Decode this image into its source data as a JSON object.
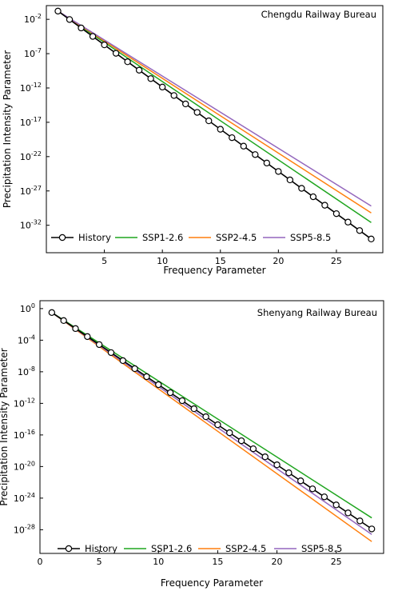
{
  "chart_data": [
    {
      "type": "line",
      "title": "Chengdu Railway Bureau",
      "xlabel": "Frequency Parameter",
      "ylabel": "Precipitation Intensity Parameter",
      "xlim": [
        0,
        29
      ],
      "xticks": [
        5,
        10,
        15,
        20,
        25
      ],
      "y_scale": "log",
      "ylim_log10": [
        -36,
        0
      ],
      "yticks": [
        {
          "label": "10",
          "exp": "-2",
          "value": -2
        },
        {
          "label": "10",
          "exp": "-7",
          "value": -7
        },
        {
          "label": "10",
          "exp": "-12",
          "value": -12
        },
        {
          "label": "10",
          "exp": "-17",
          "value": -17
        },
        {
          "label": "10",
          "exp": "-22",
          "value": -22
        },
        {
          "label": "10",
          "exp": "-27",
          "value": -27
        },
        {
          "label": "10",
          "exp": "-32",
          "value": -32
        }
      ],
      "legend_position": "bottom",
      "series": [
        {
          "name": "History",
          "color": "#000000",
          "marker": "circle",
          "x_start": 1,
          "x_end": 28,
          "log10_y_start": -0.8,
          "log10_y_end": -34.0
        },
        {
          "name": "SSP1-2.6",
          "color": "#1fa51f",
          "marker": "none",
          "x_start": 1,
          "x_end": 28,
          "log10_y_start": -0.8,
          "log10_y_end": -31.6
        },
        {
          "name": "SSP2-4.5",
          "color": "#ff7f0e",
          "marker": "none",
          "x_start": 1,
          "x_end": 28,
          "log10_y_start": -0.8,
          "log10_y_end": -30.2
        },
        {
          "name": "SSP5-8.5",
          "color": "#9467bd",
          "marker": "none",
          "x_start": 1,
          "x_end": 28,
          "log10_y_start": -0.8,
          "log10_y_end": -29.2
        }
      ]
    },
    {
      "type": "line",
      "title": "Shenyang Railway Bureau",
      "xlabel": "Frequency Parameter",
      "ylabel": "Precipitation Intensity Parameter",
      "xlim": [
        0,
        29
      ],
      "xticks": [
        0,
        5,
        10,
        15,
        20,
        25
      ],
      "y_scale": "log",
      "ylim_log10": [
        -31,
        1
      ],
      "yticks": [
        {
          "label": "10",
          "exp": "0",
          "value": 0
        },
        {
          "label": "10",
          "exp": "-4",
          "value": -4
        },
        {
          "label": "10",
          "exp": "-8",
          "value": -8
        },
        {
          "label": "10",
          "exp": "-12",
          "value": -12
        },
        {
          "label": "10",
          "exp": "-16",
          "value": -16
        },
        {
          "label": "10",
          "exp": "-20",
          "value": -20
        },
        {
          "label": "10",
          "exp": "-24",
          "value": -24
        },
        {
          "label": "10",
          "exp": "-28",
          "value": -28
        }
      ],
      "legend_position": "bottom",
      "series": [
        {
          "name": "History",
          "color": "#000000",
          "marker": "circle",
          "x_start": 1,
          "x_end": 28,
          "log10_y_start": -0.5,
          "log10_y_end": -27.9
        },
        {
          "name": "SSP1-2.6",
          "color": "#1fa51f",
          "marker": "none",
          "x_start": 1,
          "x_end": 28,
          "log10_y_start": -0.5,
          "log10_y_end": -26.5
        },
        {
          "name": "SSP2-4.5",
          "color": "#ff7f0e",
          "marker": "none",
          "x_start": 1,
          "x_end": 28,
          "log10_y_start": -0.5,
          "log10_y_end": -29.5
        },
        {
          "name": "SSP5-8.5",
          "color": "#9467bd",
          "marker": "none",
          "x_start": 1,
          "x_end": 28,
          "log10_y_start": -0.5,
          "log10_y_end": -28.6
        }
      ]
    }
  ]
}
